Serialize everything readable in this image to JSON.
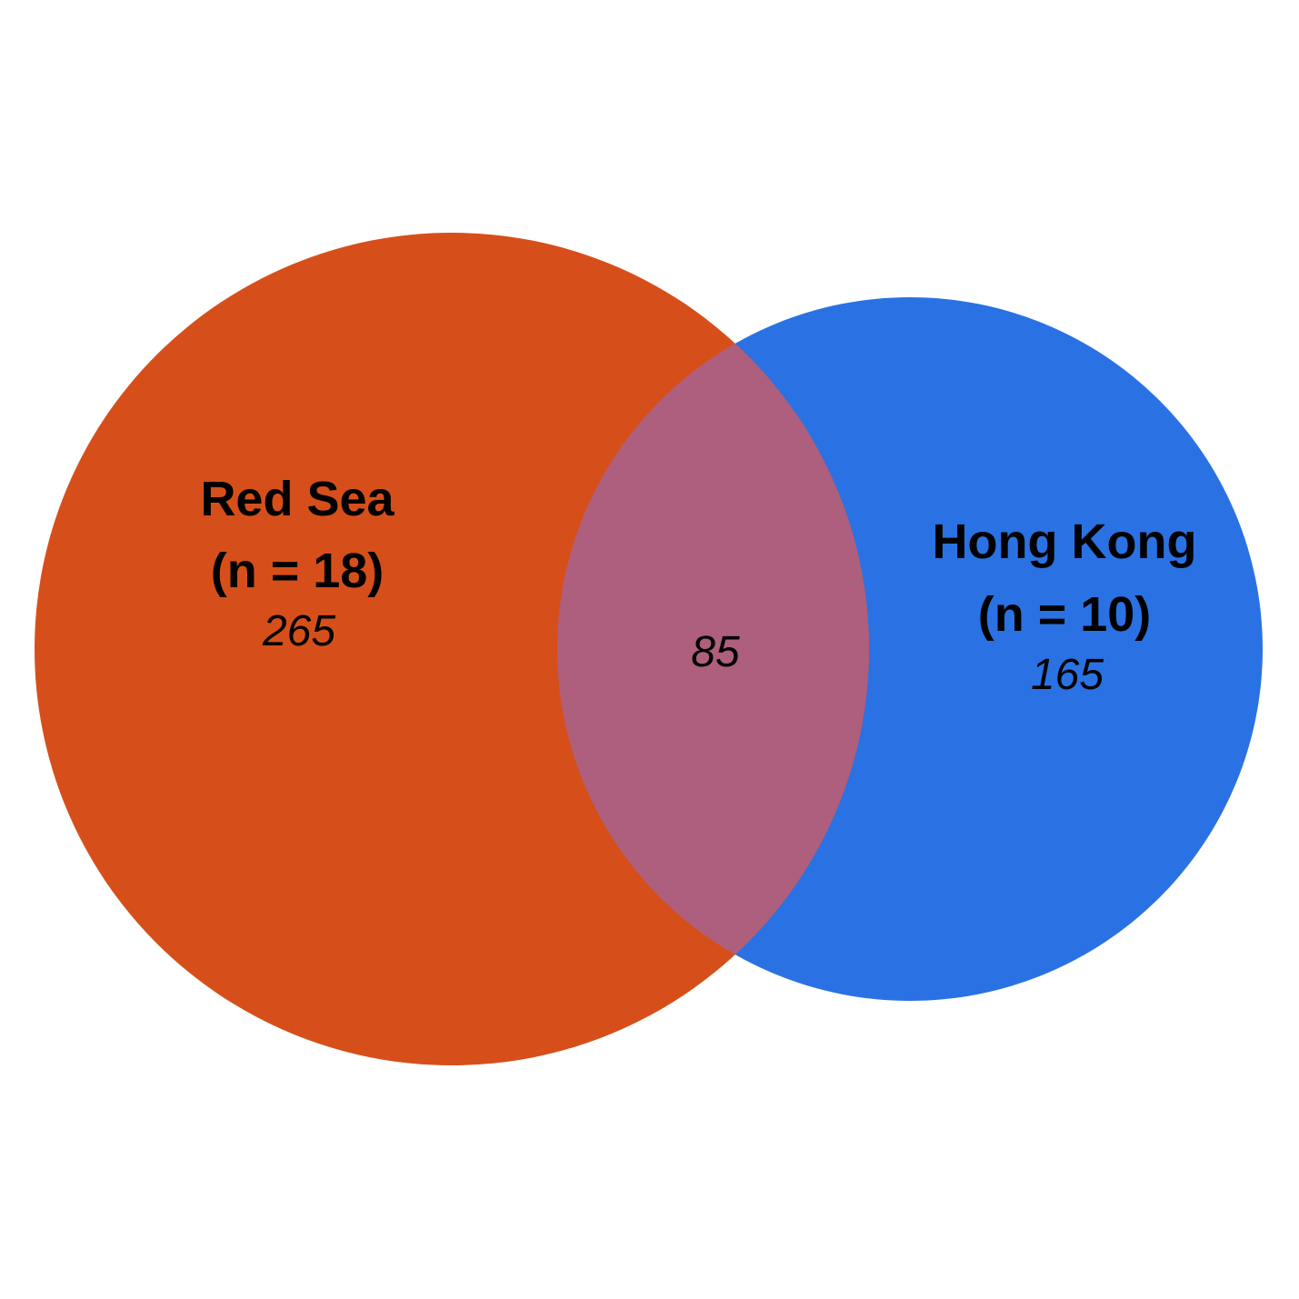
{
  "diagram": {
    "type": "venn",
    "sets": [
      {
        "name": "Red Sea",
        "n_label": "(n = 18)",
        "unique_count": "265",
        "color": "#D64F1A"
      },
      {
        "name": "Hong Kong",
        "n_label": "(n = 10)",
        "unique_count": "165",
        "color": "#2A72E3"
      }
    ],
    "overlap": {
      "count": "85",
      "color": "#AE5F7E"
    },
    "background": "#FFFFFF"
  }
}
